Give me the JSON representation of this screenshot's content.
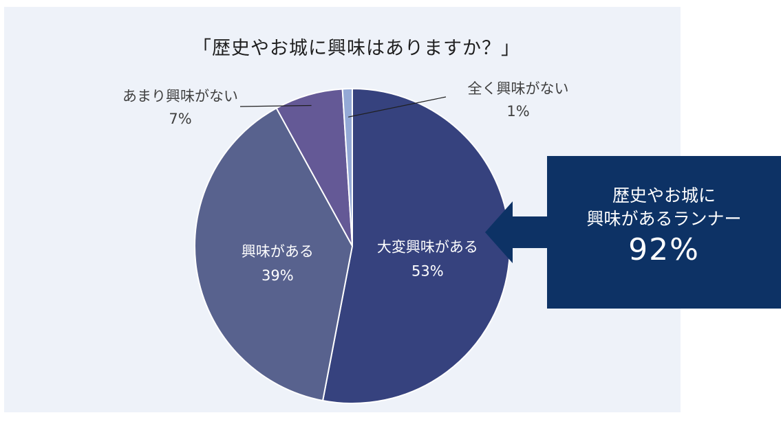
{
  "chart_data": {
    "type": "pie",
    "title": "「歴史やお城に興味はありますか？」",
    "slices": [
      {
        "label": "大変興味がある",
        "value": 53,
        "value_label": "53%",
        "color": "#36427e",
        "label_position": "inside"
      },
      {
        "label": "興味がある",
        "value": 39,
        "value_label": "39%",
        "color": "#58628e",
        "label_position": "inside"
      },
      {
        "label": "あまり興味がない",
        "value": 7,
        "value_label": "7%",
        "color": "#645996",
        "label_position": "outside-left"
      },
      {
        "label": "全く興味がない",
        "value": 1,
        "value_label": "1%",
        "color": "#94a9d6",
        "label_position": "outside-right"
      }
    ],
    "start_angle": "12 o'clock",
    "direction": "clockwise",
    "legend": "none"
  },
  "callout": {
    "line1": "歴史やお城に",
    "line2": "興味があるランナー",
    "value": "92%",
    "background_color": "#0d3265",
    "text_color": "#ffffff"
  }
}
